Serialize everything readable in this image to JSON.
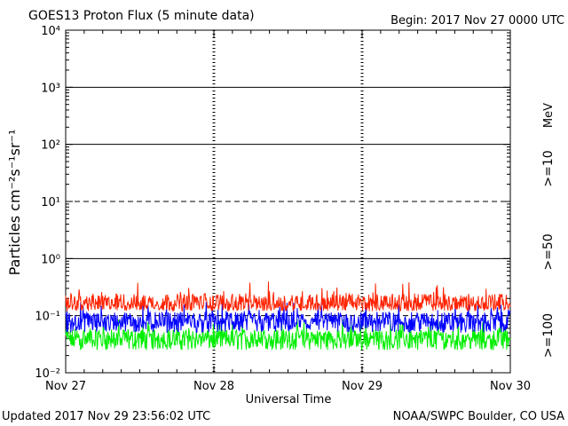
{
  "header": {
    "title": "GOES13 Proton Flux (5 minute data)",
    "begin": "Begin: 2017 Nov 27 0000 UTC"
  },
  "footer": {
    "updated": "Updated 2017 Nov 29 23:56:02 UTC",
    "credit": "NOAA/SWPC Boulder, CO USA"
  },
  "colors": {
    "ge10": "#ff2200",
    "ge50": "#0000ff",
    "ge100": "#00ee00",
    "axis": "#000000"
  },
  "chart_data": {
    "type": "line",
    "title": "GOES13 Proton Flux (5 minute data)",
    "xlabel": "Universal Time",
    "ylabel": "Particles cm⁻²s⁻¹sr⁻¹",
    "y_scale": "log",
    "ylim": [
      0.01,
      10000
    ],
    "y_tick_labels": [
      "10⁻²",
      "10⁻¹",
      "10⁰",
      "10¹",
      "10²",
      "10³",
      "10⁴"
    ],
    "y_ticks": [
      0.01,
      0.1,
      1,
      10,
      100,
      1000,
      10000
    ],
    "dashed_gridlines": [
      0.1,
      10
    ],
    "solid_gridlines": [
      1,
      100,
      1000
    ],
    "x_tick_labels": [
      "Nov 27",
      "Nov 28",
      "Nov 29",
      "Nov 30"
    ],
    "xlim": [
      "2017-11-27 00:00",
      "2017-11-30 00:00"
    ],
    "energy_unit": "MeV",
    "series": [
      {
        "name": ">=10",
        "color": "#ff2200",
        "typical": 0.16,
        "min": 0.12,
        "max": 0.4
      },
      {
        "name": ">=50",
        "color": "#0000ff",
        "typical": 0.08,
        "min": 0.05,
        "max": 0.18
      },
      {
        "name": ">=100",
        "color": "#00ee00",
        "typical": 0.04,
        "min": 0.025,
        "max": 0.09
      }
    ]
  }
}
